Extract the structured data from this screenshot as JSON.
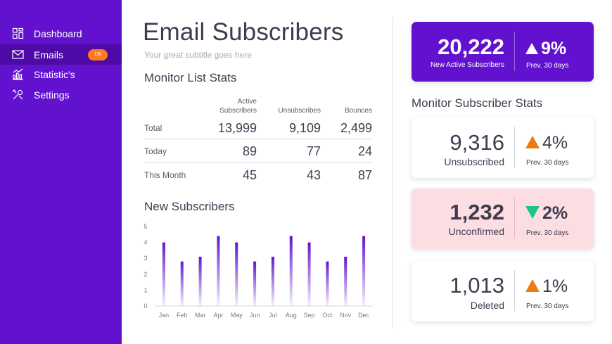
{
  "sidebar": {
    "items": [
      {
        "label": "Dashboard",
        "icon": "dashboard-icon"
      },
      {
        "label": "Emails",
        "icon": "mail-icon",
        "badge": "13k",
        "active": true
      },
      {
        "label": "Statistic's",
        "icon": "chart-icon"
      },
      {
        "label": "Settings",
        "icon": "tools-icon"
      }
    ]
  },
  "header": {
    "title": "Email Subscribers",
    "subtitle": "Your great subtitle goes here"
  },
  "list_stats": {
    "heading": "Monitor List Stats",
    "columns": [
      "Active Subscribers",
      "Unsubscribes",
      "Bounces"
    ],
    "rows": [
      {
        "label": "Total",
        "values": [
          "13,999",
          "9,109",
          "2,499"
        ]
      },
      {
        "label": "Today",
        "values": [
          "89",
          "77",
          "24"
        ]
      },
      {
        "label": "This Month",
        "values": [
          "45",
          "43",
          "87"
        ]
      }
    ]
  },
  "new_subscribers": {
    "heading": "New Subscribers"
  },
  "chart_data": {
    "type": "bar",
    "title": "New Subscribers",
    "categories": [
      "Jan",
      "Feb",
      "Mar",
      "Apr",
      "May",
      "Jun",
      "Jul",
      "Aug",
      "Sep",
      "Oct",
      "Nov",
      "Dec"
    ],
    "values": [
      4.0,
      2.8,
      3.1,
      4.4,
      4.0,
      2.8,
      3.1,
      4.4,
      4.0,
      2.8,
      3.1,
      4.4
    ],
    "ylim": [
      0,
      5
    ],
    "yticks": [
      "0",
      "1",
      "2",
      "3",
      "4",
      "5"
    ],
    "xlabel": "",
    "ylabel": "",
    "grid": false,
    "bar_color": "#6212cf"
  },
  "subscriber_stats": {
    "heading": "Monitor Subscriber Stats",
    "cards": [
      {
        "value": "20,222",
        "caption": "New Active Subscribers",
        "change": "9%",
        "direction": "up",
        "prev": "Prev. 30 days",
        "style": "purple",
        "icon_color": "#ffffff"
      },
      {
        "value": "9,316",
        "caption": "Unsubscribed",
        "change": "4%",
        "direction": "up",
        "prev": "Prev. 30 days",
        "style": "white",
        "icon_color": "#f07a12"
      },
      {
        "value": "1,232",
        "caption": "Unconfirmed",
        "change": "2%",
        "direction": "down",
        "prev": "Prev. 30 days",
        "style": "pink",
        "icon_color": "#1fc287"
      },
      {
        "value": "1,013",
        "caption": "Deleted",
        "change": "1%",
        "direction": "up",
        "prev": "Prev. 30 days",
        "style": "white",
        "icon_color": "#f07a12"
      }
    ]
  },
  "colors": {
    "sidebar": "#6212cf",
    "sidebar_active": "#4d0aa6",
    "badge": "#ff7a1a",
    "up": "#f07a12",
    "down": "#1fc287",
    "pink_card": "#fbdde2"
  }
}
